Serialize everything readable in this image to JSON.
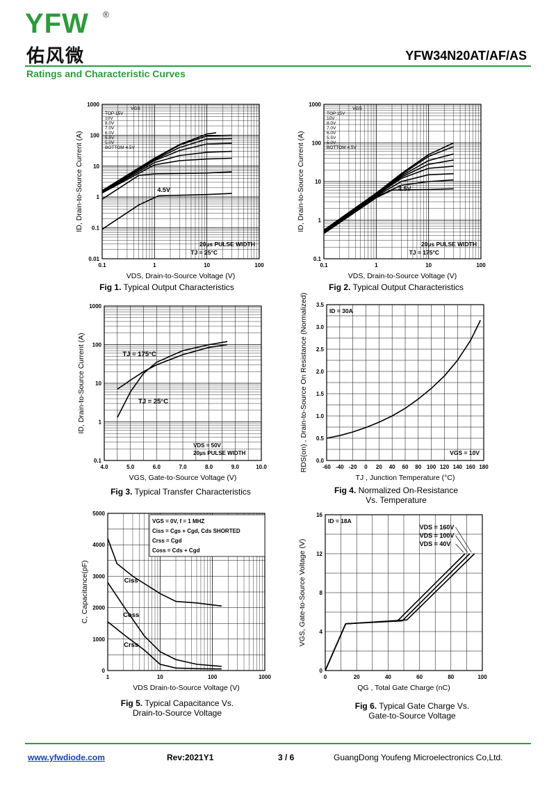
{
  "header": {
    "logo_text": "YFW",
    "logo_cn": "佑风微",
    "part_number": "YFW34N20AT/AF/AS",
    "section_title": "Ratings and Characteristic Curves"
  },
  "footer": {
    "website": "www.yfwdiode.com",
    "revision": "Rev:2021Y1",
    "page": "3 / 6",
    "company": "GuangDong Youfeng Microelectronics Co,Ltd."
  },
  "colors": {
    "brand_green": "#2e9a3c",
    "link_blue": "#1a3fb0"
  },
  "chart_data": [
    {
      "id": "fig1",
      "type": "line",
      "caption_num": "Fig 1.",
      "caption": "Typical Output Characteristics",
      "xlabel": "VDS, Drain-to-Source Voltage (V)",
      "ylabel": "ID, Drain-to-Source Current (A)",
      "xscale": "log",
      "yscale": "log",
      "xlim": [
        0.1,
        100
      ],
      "ylim": [
        0.01,
        1000
      ],
      "xticks": [
        "0.1",
        "1",
        "10",
        "100"
      ],
      "yticks": [
        "0.01",
        "0.1",
        "1",
        "10",
        "100",
        "1000"
      ],
      "legend_title": "VGS",
      "legend": [
        "TOP 15V",
        "10V",
        "8.0V",
        "7.0V",
        "6.0V",
        "5.5V",
        "5.0V",
        "BOTTOM 4.5V"
      ],
      "annotations": [
        "4.5V",
        "20µs PULSE WIDTH",
        "TJ = 25°C"
      ],
      "series": [
        {
          "name": "15V",
          "x": [
            0.1,
            1,
            3,
            10,
            15
          ],
          "y": [
            1.6,
            18,
            50,
            110,
            120
          ]
        },
        {
          "name": "10V",
          "x": [
            0.1,
            1,
            3,
            10,
            30
          ],
          "y": [
            1.55,
            17,
            48,
            95,
            100
          ]
        },
        {
          "name": "8.0V",
          "x": [
            0.1,
            1,
            3,
            10,
            30
          ],
          "y": [
            1.5,
            16,
            40,
            75,
            78
          ]
        },
        {
          "name": "7.0V",
          "x": [
            0.1,
            1,
            3,
            10,
            30
          ],
          "y": [
            1.45,
            15,
            32,
            52,
            55
          ]
        },
        {
          "name": "6.0V",
          "x": [
            0.1,
            1,
            3,
            10,
            30
          ],
          "y": [
            1.4,
            13,
            22,
            28,
            30
          ]
        },
        {
          "name": "5.5V",
          "x": [
            0.1,
            1,
            3,
            10,
            30
          ],
          "y": [
            1.35,
            11,
            15,
            17,
            18
          ]
        },
        {
          "name": "5.0V",
          "x": [
            0.1,
            0.5,
            1,
            10,
            30
          ],
          "y": [
            0.85,
            5,
            5.6,
            6,
            6.5
          ]
        },
        {
          "name": "4.5V",
          "x": [
            0.1,
            0.5,
            1.2,
            10,
            30
          ],
          "y": [
            0.09,
            0.55,
            1.1,
            1.2,
            1.3
          ]
        }
      ]
    },
    {
      "id": "fig2",
      "type": "line",
      "caption_num": "Fig 2.",
      "caption": "Typical Output Characteristics",
      "xlabel": "VDS, Drain-to-Source Voltage (V)",
      "ylabel": "ID, Drain-to-Source Current (A)",
      "xscale": "log",
      "yscale": "log",
      "xlim": [
        0.1,
        100
      ],
      "ylim": [
        0.1,
        1000
      ],
      "xticks": [
        "0.1",
        "1",
        "10",
        "100"
      ],
      "yticks": [
        "0.1",
        "1",
        "10",
        "100",
        "1000"
      ],
      "legend_title": "VGS",
      "legend": [
        "TOP 15V",
        "10V",
        "8.0V",
        "7.0V",
        "6.0V",
        "5.5V",
        "5.0V",
        "BOTTOM 4.5V"
      ],
      "annotations": [
        "4.5V",
        "20µs PULSE WIDTH",
        "TJ = 175°C"
      ],
      "series": [
        {
          "name": "15V",
          "x": [
            0.1,
            1,
            3,
            10,
            30
          ],
          "y": [
            0.55,
            5,
            16,
            50,
            100
          ]
        },
        {
          "name": "10V",
          "x": [
            0.1,
            1,
            3,
            10,
            30
          ],
          "y": [
            0.55,
            5,
            15,
            45,
            80
          ]
        },
        {
          "name": "8.0V",
          "x": [
            0.1,
            1,
            3,
            10,
            30
          ],
          "y": [
            0.52,
            4.8,
            14,
            35,
            52
          ]
        },
        {
          "name": "7.0V",
          "x": [
            0.1,
            1,
            3,
            10,
            30
          ],
          "y": [
            0.5,
            4.6,
            13,
            28,
            36
          ]
        },
        {
          "name": "6.0V",
          "x": [
            0.1,
            1,
            3,
            10,
            30
          ],
          "y": [
            0.5,
            4.4,
            12,
            22,
            25
          ]
        },
        {
          "name": "5.5V",
          "x": [
            0.1,
            1,
            3,
            10,
            30
          ],
          "y": [
            0.48,
            4.2,
            10,
            15,
            16
          ]
        },
        {
          "name": "5.0V",
          "x": [
            0.1,
            1,
            3,
            10,
            30
          ],
          "y": [
            0.46,
            4,
            8,
            10,
            11
          ]
        },
        {
          "name": "4.5V",
          "x": [
            0.1,
            1,
            2,
            10,
            30
          ],
          "y": [
            0.45,
            3.8,
            6,
            6.2,
            6.5
          ]
        }
      ]
    },
    {
      "id": "fig3",
      "type": "line",
      "caption_num": "Fig 3.",
      "caption": "Typical Transfer Characteristics",
      "xlabel": "VGS, Gate-to-Source Voltage (V)",
      "ylabel": "ID, Drain-to-Source Current (A)",
      "xscale": "linear",
      "yscale": "log",
      "xlim": [
        4.0,
        10.0
      ],
      "ylim": [
        0.1,
        1000
      ],
      "xticks": [
        "4.0",
        "5.0",
        "6.0",
        "7.0",
        "8.0",
        "9.0",
        "10.0"
      ],
      "yticks": [
        "0.1",
        "1",
        "10",
        "100",
        "1000"
      ],
      "annotations": [
        "TJ = 175°C",
        "TJ = 25°C",
        "VDS = 50V",
        "20µs PULSE WIDTH"
      ],
      "series": [
        {
          "name": "TJ = 175°C",
          "x": [
            4.5,
            5.0,
            5.5,
            6.0,
            7.0,
            8.0,
            8.7
          ],
          "y": [
            7,
            12,
            20,
            30,
            55,
            85,
            100
          ]
        },
        {
          "name": "TJ = 25°C",
          "x": [
            4.5,
            5.0,
            5.5,
            6.0,
            7.0,
            8.0,
            8.7
          ],
          "y": [
            1.3,
            6,
            18,
            35,
            70,
            100,
            120
          ]
        }
      ]
    },
    {
      "id": "fig4",
      "type": "line",
      "caption_num": "Fig 4.",
      "caption": "Normalized On-Resistance",
      "caption2": "Vs. Temperature",
      "xlabel": "TJ , Junction Temperature (°C)",
      "ylabel": "RDS(on) , Drain-to-Source On Resistance (Normalized)",
      "xscale": "linear",
      "yscale": "linear",
      "xlim": [
        -60,
        180
      ],
      "ylim": [
        0.0,
        3.5
      ],
      "xticks": [
        "-60",
        "-40",
        "-20",
        "0",
        "20",
        "40",
        "60",
        "80",
        "100",
        "120",
        "140",
        "160",
        "180"
      ],
      "yticks": [
        "0.0",
        "0.5",
        "1.0",
        "1.5",
        "2.0",
        "2.5",
        "3.0",
        "3.5"
      ],
      "annotations": [
        "ID = 30A",
        "VGS = 10V"
      ],
      "series": [
        {
          "name": "RDS(on)",
          "x": [
            -60,
            -40,
            -20,
            0,
            20,
            40,
            60,
            80,
            100,
            120,
            140,
            160,
            175
          ],
          "y": [
            0.5,
            0.56,
            0.64,
            0.74,
            0.86,
            1.0,
            1.17,
            1.38,
            1.62,
            1.9,
            2.25,
            2.7,
            3.15
          ]
        }
      ]
    },
    {
      "id": "fig5",
      "type": "line",
      "caption_num": "Fig 5.",
      "caption": "Typical Capacitance Vs.",
      "caption2": "Drain-to-Source Voltage",
      "xlabel": "VDS Drain-to-Source Voltage (V)",
      "ylabel": "C, Capacitance(pF)",
      "xscale": "log",
      "yscale": "linear",
      "xlim": [
        1,
        1000
      ],
      "ylim": [
        0,
        5000
      ],
      "xticks": [
        "1",
        "10",
        "100",
        "1000"
      ],
      "yticks": [
        "0",
        "1000",
        "2000",
        "3000",
        "4000",
        "5000"
      ],
      "legend": [
        "VGS = 0V, f = 1 MHZ",
        "Ciss = Cgs + Cgd, Cds SHORTED",
        "Crss = Cgd",
        "Coss = Cds + Cgd"
      ],
      "series": [
        {
          "name": "Ciss",
          "x": [
            1,
            1.5,
            3,
            10,
            20,
            50,
            150
          ],
          "y": [
            4200,
            3400,
            3000,
            2450,
            2200,
            2150,
            2050
          ]
        },
        {
          "name": "Coss",
          "x": [
            1,
            2,
            5,
            10,
            20,
            50,
            150
          ],
          "y": [
            2800,
            2050,
            1100,
            600,
            350,
            200,
            130
          ]
        },
        {
          "name": "Crss",
          "x": [
            1,
            2,
            5,
            10,
            20,
            50,
            150
          ],
          "y": [
            1550,
            1150,
            650,
            200,
            80,
            60,
            50
          ]
        }
      ]
    },
    {
      "id": "fig6",
      "type": "line",
      "caption_num": "Fig 6.",
      "caption": "Typical Gate Charge Vs.",
      "caption2": "Gate-to-Source Voltage",
      "xlabel": "QG , Total Gate Charge (nC)",
      "ylabel": "VGS, Gate-to-Source Voltage (V)",
      "xscale": "linear",
      "yscale": "linear",
      "xlim": [
        0,
        100
      ],
      "ylim": [
        0,
        16
      ],
      "xticks": [
        "0",
        "20",
        "40",
        "60",
        "80",
        "100"
      ],
      "yticks": [
        "0",
        "4",
        "8",
        "12",
        "16"
      ],
      "annotations": [
        "ID = 18A"
      ],
      "legend": [
        "VDS = 160V",
        "VDS = 100V",
        "VDS = 40V"
      ],
      "series": [
        {
          "name": "VDS = 160V",
          "x": [
            0,
            13,
            52,
            95
          ],
          "y": [
            0,
            4.8,
            5.2,
            12
          ]
        },
        {
          "name": "VDS = 100V",
          "x": [
            0,
            13,
            49,
            92
          ],
          "y": [
            0,
            4.8,
            5.1,
            12
          ]
        },
        {
          "name": "VDS = 40V",
          "x": [
            0,
            13,
            46,
            89
          ],
          "y": [
            0,
            4.8,
            5.1,
            12
          ]
        }
      ]
    }
  ]
}
